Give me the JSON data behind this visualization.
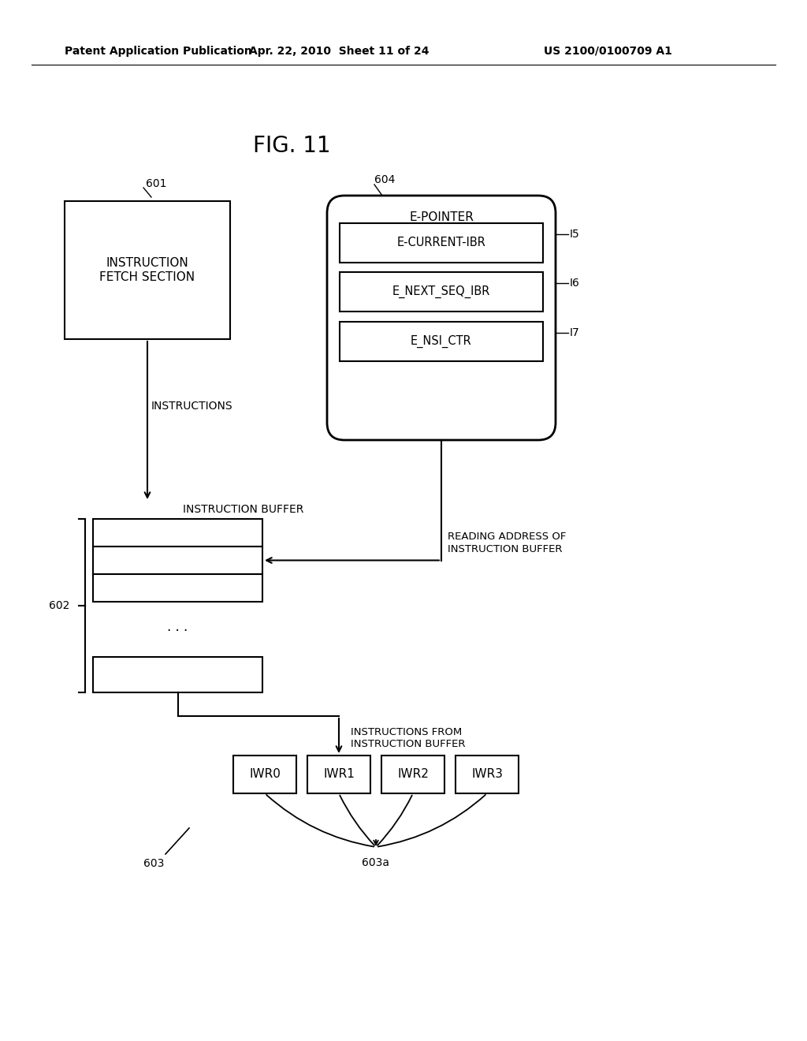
{
  "bg_color": "#ffffff",
  "header_left": "Patent Application Publication",
  "header_mid": "Apr. 22, 2010  Sheet 11 of 24",
  "header_right": "US 2100/0100709 A1",
  "fig_title": "FIG. 11",
  "box601_label": "INSTRUCTION\nFETCH SECTION",
  "box601_ref": "601",
  "box604_label": "E-POINTER",
  "box604_ref": "604",
  "box_I5_label": "E-CURRENT-IBR",
  "box_I5_ref": "I5",
  "box_I6_label": "E_NEXT_SEQ_IBR",
  "box_I6_ref": "I6",
  "box_I7_label": "E_NSI_CTR",
  "box_I7_ref": "I7",
  "box602_ref": "602",
  "buf_label": "INSTRUCTION BUFFER",
  "instructions_label": "INSTRUCTIONS",
  "reading_addr_label": "READING ADDRESS OF\nINSTRUCTION BUFFER",
  "instructions_from_label": "INSTRUCTIONS FROM\nINSTRUCTION BUFFER",
  "iwr_boxes": [
    "IWR0",
    "IWR1",
    "IWR2",
    "IWR3"
  ],
  "ref603": "603",
  "ref603a": "603a"
}
